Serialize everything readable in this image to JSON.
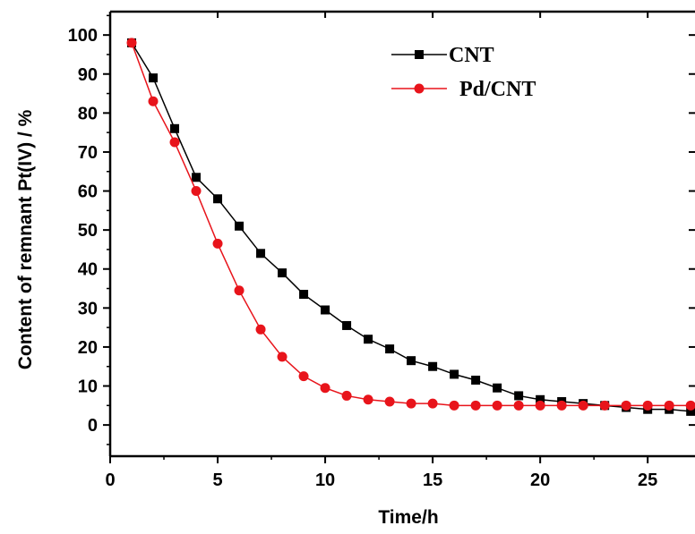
{
  "chart_data": {
    "type": "line",
    "title": "",
    "xlabel": "Time/h",
    "ylabel": "Content of remnant Pt(IV) / %",
    "xlim": [
      0,
      27.2
    ],
    "ylim": [
      -8,
      106
    ],
    "xticks": [
      "0",
      "5",
      "10",
      "15",
      "20",
      "25"
    ],
    "yticks": [
      "0",
      "10",
      "20",
      "30",
      "40",
      "50",
      "60",
      "70",
      "80",
      "90",
      "100"
    ],
    "grid": false,
    "legend_position": "top-right",
    "series": [
      {
        "name": "CNT",
        "color": "#000000",
        "marker": "square",
        "x": [
          1,
          2,
          3,
          4,
          5,
          6,
          7,
          8,
          9,
          10,
          11,
          12,
          13,
          14,
          15,
          16,
          17,
          18,
          19,
          20,
          21,
          22,
          23,
          24,
          25,
          26,
          27
        ],
        "y": [
          98,
          89,
          76,
          63.5,
          58,
          51,
          44,
          39,
          33.5,
          29.5,
          25.5,
          22,
          19.5,
          16.5,
          15,
          13,
          11.5,
          9.5,
          7.5,
          6.5,
          6,
          5.5,
          5,
          4.5,
          4,
          4,
          3.5
        ]
      },
      {
        "name": "Pd/CNT",
        "color": "#e8141b",
        "marker": "circle",
        "x": [
          1,
          2,
          3,
          4,
          5,
          6,
          7,
          8,
          9,
          10,
          11,
          12,
          13,
          14,
          15,
          16,
          17,
          18,
          19,
          20,
          21,
          22,
          23,
          24,
          25,
          26,
          27
        ],
        "y": [
          98,
          83,
          72.5,
          60,
          46.5,
          34.5,
          24.5,
          17.5,
          12.5,
          9.5,
          7.5,
          6.5,
          6,
          5.5,
          5.5,
          5,
          5,
          5,
          5,
          5,
          5,
          5,
          5,
          5,
          5,
          5,
          5
        ]
      }
    ]
  }
}
